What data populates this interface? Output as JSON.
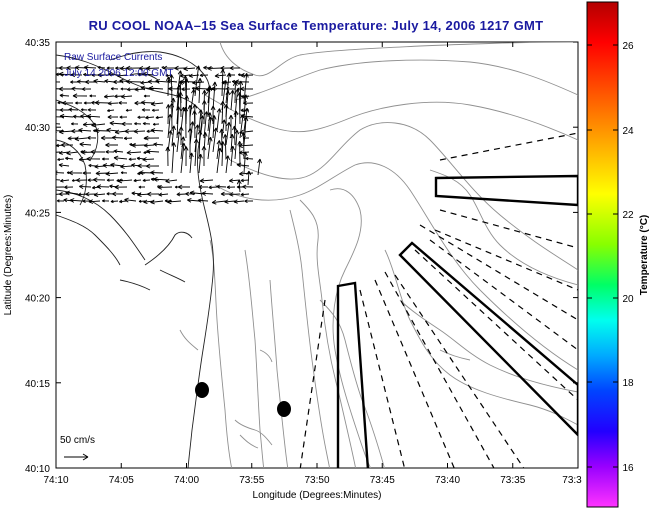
{
  "title": "RU COOL  NOAA–15  Sea Surface Temperature:  July 14, 2006 1217 GMT",
  "legend": {
    "line1": "Raw Surface Currents",
    "line2": "July 14 2006 12:00 GMT"
  },
  "scale_label": "50 cm/s",
  "axes": {
    "xlabel": "Longitude (Degrees:Minutes)",
    "ylabel": "Latitude (Degrees:Minutes)",
    "xticks": [
      "74:10",
      "74:05",
      "74:00",
      "73:55",
      "73:50",
      "73:45",
      "73:40",
      "73:35",
      "73:3"
    ],
    "yticks": [
      "40:35",
      "40:30",
      "40:25",
      "40:20",
      "40:15",
      "40:10"
    ]
  },
  "colorbar": {
    "label": "Temperature (°C)",
    "ticks": [
      "26",
      "24",
      "22",
      "20",
      "18",
      "16"
    ],
    "colors": [
      "#cc0000",
      "#ff0000",
      "#ff6600",
      "#ffaa00",
      "#ffee00",
      "#aaff00",
      "#33ff33",
      "#00ff99",
      "#00ffff",
      "#0099ff",
      "#0033ff",
      "#3300ff",
      "#9900ff",
      "#ff33ff"
    ]
  }
}
